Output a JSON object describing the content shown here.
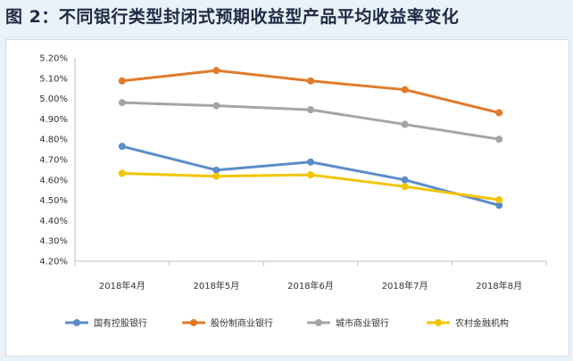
{
  "title": "图 2：不同银行类型封闭式预期收益型产品平均收益率变化",
  "chart_data": {
    "type": "line",
    "categories": [
      "2018年4月",
      "2018年5月",
      "2018年6月",
      "2018年7月",
      "2018年8月"
    ],
    "ylim": [
      4.2,
      5.2
    ],
    "yticks": [
      "5.20%",
      "5.10%",
      "5.00%",
      "4.90%",
      "4.80%",
      "4.70%",
      "4.60%",
      "4.50%",
      "4.40%",
      "4.30%",
      "4.20%"
    ],
    "grid": false,
    "legend_position": "bottom",
    "series": [
      {
        "name": "国有控股银行",
        "color": "#5b8cc8",
        "values": [
          4.765,
          4.648,
          4.688,
          4.6,
          4.475
        ]
      },
      {
        "name": "股份制商业银行",
        "color": "#e07b2c",
        "values": [
          5.087,
          5.138,
          5.087,
          5.044,
          4.93
        ]
      },
      {
        "name": "城市商业银行",
        "color": "#a5a5a5",
        "values": [
          4.98,
          4.965,
          4.945,
          4.873,
          4.8
        ]
      },
      {
        "name": "农村金融机构",
        "color": "#f2c500",
        "values": [
          4.632,
          4.618,
          4.625,
          4.567,
          4.502
        ]
      }
    ]
  }
}
